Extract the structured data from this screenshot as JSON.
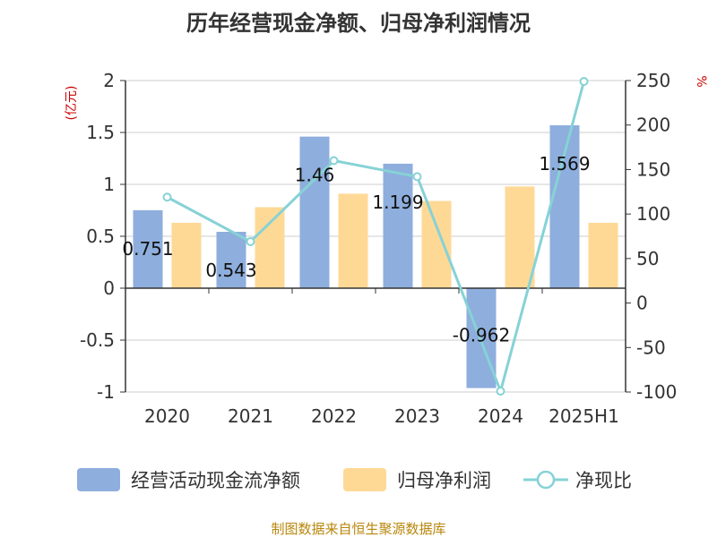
{
  "title": "历年经营现金净额、归母净利润情况",
  "source": "制图数据来自恒生聚源数据库",
  "colors": {
    "cash": "#8eaedd",
    "profit": "#fed996",
    "ratio": "#86d2d6",
    "grid": "#cccccc",
    "axis": "#333333"
  },
  "chart_data": {
    "type": "bar",
    "categories": [
      "2020",
      "2021",
      "2022",
      "2023",
      "2024",
      "2025H1"
    ],
    "y_left": {
      "unit": "(亿元)",
      "ylim": [
        -1,
        2
      ],
      "ticks": [
        -1,
        -0.5,
        0,
        0.5,
        1,
        1.5,
        2
      ],
      "tick_labels": [
        "-1",
        "-0.5",
        "0",
        "0.5",
        "1",
        "1.5",
        "2"
      ]
    },
    "y_right": {
      "unit": "%",
      "ylim": [
        -100,
        250
      ],
      "ticks": [
        -100,
        -50,
        0,
        50,
        100,
        150,
        200,
        250
      ],
      "tick_labels": [
        "-100",
        "-50",
        "0",
        "50",
        "100",
        "150",
        "200",
        "250"
      ]
    },
    "grid": true,
    "legend_position": "bottom",
    "series": [
      {
        "name": "经营活动现金流净额",
        "type": "bar",
        "axis": "left",
        "values": [
          0.751,
          0.543,
          1.46,
          1.199,
          -0.962,
          1.569
        ],
        "labels": [
          "0.751",
          "0.543",
          "1.46",
          "1.199",
          "-0.962",
          "1.569"
        ]
      },
      {
        "name": "归母净利润",
        "type": "bar",
        "axis": "left",
        "values": [
          0.63,
          0.78,
          0.91,
          0.84,
          0.98,
          0.63
        ]
      },
      {
        "name": "净现比",
        "type": "line",
        "axis": "right",
        "values": [
          119,
          69,
          160,
          142,
          -99,
          249
        ]
      }
    ]
  }
}
